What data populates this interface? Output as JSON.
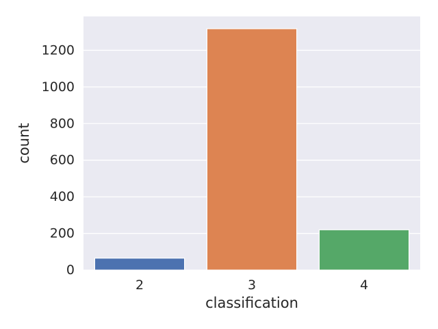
{
  "chart_data": {
    "type": "bar",
    "title": "",
    "xlabel": "classification",
    "ylabel": "count",
    "categories": [
      "2",
      "3",
      "4"
    ],
    "values": [
      65,
      1318,
      220
    ],
    "colors": [
      "#4c72b0",
      "#dd8452",
      "#55a868"
    ],
    "ylim": [
      0,
      1385
    ],
    "yticks": [
      0,
      200,
      400,
      600,
      800,
      1000,
      1200
    ],
    "grid": true,
    "background": "#eaeaf2",
    "grid_color": "#ffffff"
  }
}
